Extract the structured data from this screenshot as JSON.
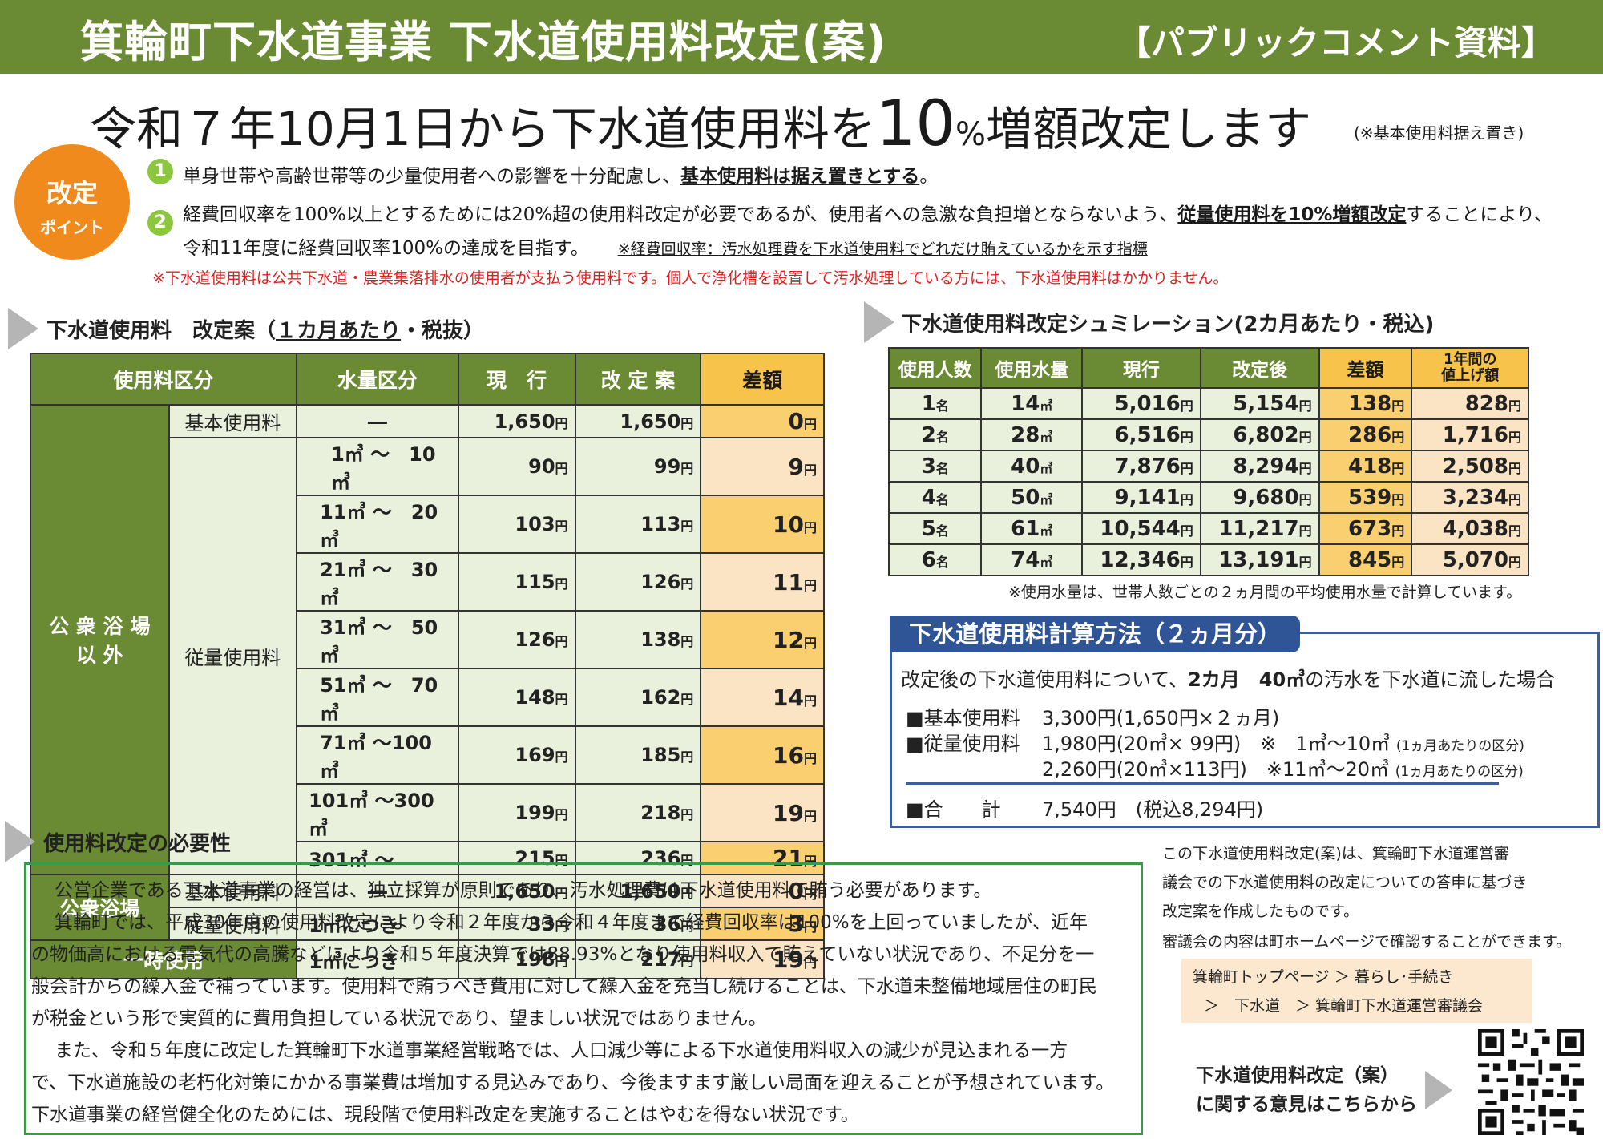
{
  "header": {
    "title": "箕輪町下水道事業 下水道使用料改定(案)",
    "tag": "【パブリックコメント資料】"
  },
  "headline": {
    "pre": "令和７年10月1日から下水道使用料を",
    "big": "10",
    "pct": "%",
    "post": "増額改定します",
    "note": "(※基本使用料据え置き)"
  },
  "points": {
    "badge_l1": "改定",
    "badge_l2": "ポイント",
    "p1_num": "1",
    "p1_a": "単身世帯や高齢世帯等の少量使用者への影響を十分配慮し、",
    "p1_b": "基本使用料は据え置きとする",
    "p1_c": "。",
    "p2_num": "2",
    "p2_a": "経費回収率を100%以上とするためには20%超の使用料改定が必要であるが、使用者への急激な負担増とならないよう、",
    "p2_b": "従量使用料を10%増額改定",
    "p2_c": "することにより、",
    "p2_d": "令和11年度に経費回収率100%の達成を目指す。",
    "p2_note": "※経費回収率：汚水処理費を下水道使用料でどれだけ賄えているかを示す指標",
    "red_note": "※下水道使用料は公共下水道・農業集落排水の使用者が支払う使用料です。個人で浄化槽を設置して汚水処理している方には、下水道使用料はかかりません。"
  },
  "left_table": {
    "title_a": "下水道使用料　改定案（",
    "title_u": "１カ月あたり",
    "title_b": "・税抜）",
    "headers": [
      "使用料区分",
      "水量区分",
      "現　行",
      "改 定 案",
      "差額"
    ],
    "group1": "公 衆 浴 場\n以 外",
    "group1_l1": "公 衆 浴 場",
    "group1_l2": "以 外",
    "basic": "基本使用料",
    "metered": "従量使用料",
    "group2": "公衆浴場",
    "group3": "一時使用",
    "yen": "円",
    "rows": [
      {
        "vol": "―",
        "cur": "1,650",
        "rev": "1,650",
        "diff": "0"
      },
      {
        "vol": "1㎥ ～　10㎥",
        "cur": "90",
        "rev": "99",
        "diff": "9"
      },
      {
        "vol": "11㎥ ～　20㎥",
        "cur": "103",
        "rev": "113",
        "diff": "10"
      },
      {
        "vol": "21㎥ ～　30㎥",
        "cur": "115",
        "rev": "126",
        "diff": "11"
      },
      {
        "vol": "31㎥ ～　50㎥",
        "cur": "126",
        "rev": "138",
        "diff": "12"
      },
      {
        "vol": "51㎥ ～　70㎥",
        "cur": "148",
        "rev": "162",
        "diff": "14"
      },
      {
        "vol": "71㎥ ～100㎥",
        "cur": "169",
        "rev": "185",
        "diff": "16"
      },
      {
        "vol": "101㎥ ～300㎥",
        "cur": "199",
        "rev": "218",
        "diff": "19"
      },
      {
        "vol": "301㎥ ～",
        "cur": "215",
        "rev": "236",
        "diff": "21"
      },
      {
        "vol": "―",
        "cur": "1,650",
        "rev": "1,650",
        "diff": "0"
      },
      {
        "vol": "1㎥につき",
        "cur": "33",
        "rev": "36",
        "diff": "3"
      },
      {
        "vol": "1㎥につき",
        "cur": "198",
        "rev": "217",
        "diff": "19"
      }
    ]
  },
  "sim_table": {
    "title": "下水道使用料改定シュミレーション(2カ月あたり・税込)",
    "headers": [
      "使用人数",
      "使用水量",
      "現行",
      "改定後",
      "差額",
      "1年間の\n値上げ額"
    ],
    "h6_l1": "1年間の",
    "h6_l2": "値上げ額",
    "rows": [
      {
        "people": "1",
        "vol": "14",
        "cur": "5,016",
        "rev": "5,154",
        "diff": "138",
        "year": "828"
      },
      {
        "people": "2",
        "vol": "28",
        "cur": "6,516",
        "rev": "6,802",
        "diff": "286",
        "year": "1,716"
      },
      {
        "people": "3",
        "vol": "40",
        "cur": "7,876",
        "rev": "8,294",
        "diff": "418",
        "year": "2,508"
      },
      {
        "people": "4",
        "vol": "50",
        "cur": "9,141",
        "rev": "9,680",
        "diff": "539",
        "year": "3,234"
      },
      {
        "people": "5",
        "vol": "61",
        "cur": "10,544",
        "rev": "11,217",
        "diff": "673",
        "year": "4,038"
      },
      {
        "people": "6",
        "vol": "74",
        "cur": "12,346",
        "rev": "13,191",
        "diff": "845",
        "year": "5,070"
      }
    ],
    "unit_people": "名",
    "unit_vol": "㎥",
    "unit_yen": "円",
    "note": "※使用水量は、世帯人数ごとの２ヵ月間の平均使用水量で計算しています。"
  },
  "calc": {
    "title": "下水道使用料計算方法（２ヵ月分）",
    "intro_a": "改定後の下水道使用料について、",
    "intro_b": "2カ月　40㎥",
    "intro_c": "の汚水を下水道に流した場合",
    "basic_label": "■基本使用料",
    "basic_val": "3,300円(1,650円×２ヵ月)",
    "metered_label": "■従量使用料",
    "m1": "1,980円(20㎥× 99円)　※　1㎥～10㎥",
    "m1s": "(1ヵ月あたりの区分)",
    "m2": "2,260円(20㎥×113円)　※11㎥～20㎥",
    "m2s": "(1ヵ月あたりの区分)",
    "total_label": "■合　　計",
    "total_val": "7,540円　(税込8,294円)"
  },
  "necessity": {
    "title": "使用料改定の必要性",
    "lines": [
      "　公営企業である下水道事業の経営は、独立採算が原則であり、汚水処理費は下水道使用料で賄う必要があります。",
      "　箕輪町では、平成30年度の使用料改定により令和２年度から令和４年度まで経費回収率は100%を上回っていましたが、近年",
      "の物価高における電気代の高騰などにより令和５年度決算では88.93%となり使用料収入で賄えていない状況であり、不足分を一",
      "般会計からの繰入金で補っています。使用料で賄うべき費用に対して繰入金を充当し続けることは、下水道未整備地域居住の町民",
      "が税金という形で実質的に費用負担している状況であり、望ましい状況ではありません。",
      "　また、令和５年度に改定した箕輪町下水道事業経営戦略では、人口減少等による下水道使用料収入の減少が見込まれる一方",
      "で、下水道施設の老朽化対策にかかる事業費は増加する見込みであり、今後ますます厳しい局面を迎えることが予想されています。",
      "下水道事業の経営健全化のためには、現段階で使用料改定を実施することはやむを得ない状況です。"
    ]
  },
  "side": {
    "lines": [
      "この下水道使用料改定(案)は、箕輪町下水道運営審",
      "議会での下水道使用料の改定についての答申に基づき",
      "改定案を作成したものです。",
      "審議会の内容は町ホームページで確認することができます。"
    ],
    "crumb1": "箕輪町トップページ ＞ 暮らし･手続き",
    "crumb2": "＞　下水道　＞ 箕輪町下水道運営審議会",
    "qr_l1": "下水道使用料改定（案）",
    "qr_l2": "に関する意見はこちらから"
  },
  "colors": {
    "green": "#6a8a34",
    "orange": "#f08a1c",
    "light_green": "#8cc63e",
    "blue": "#2f5597",
    "red": "#e02020"
  }
}
